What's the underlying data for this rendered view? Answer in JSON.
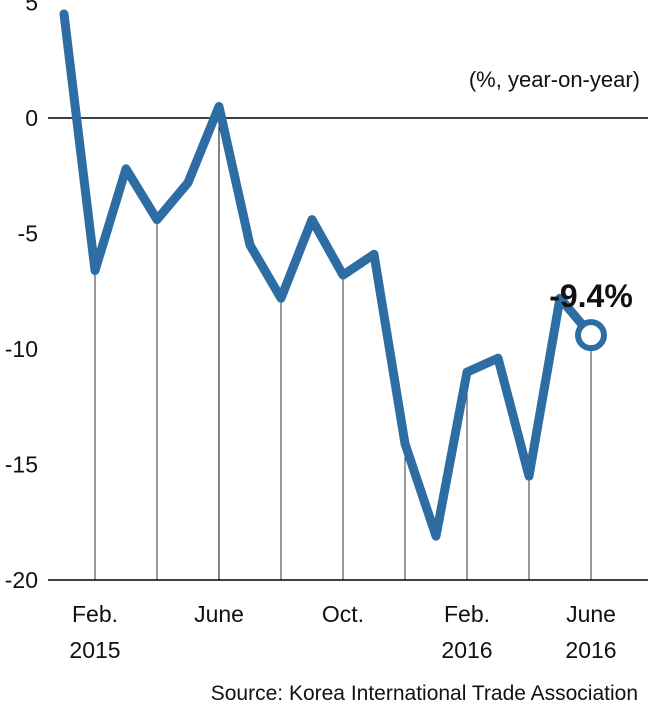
{
  "chart_data": {
    "type": "line",
    "unit_note": "(%, year-on-year)",
    "source": "Source: Korea International Trade Association",
    "ylim": [
      -20,
      5
    ],
    "yticks": [
      5,
      0,
      -5,
      -10,
      -15,
      -20
    ],
    "y_tick_labels": [
      "5",
      "0",
      "-5",
      "-10",
      "-15",
      "-20"
    ],
    "x": [
      "2015-01",
      "2015-02",
      "2015-03",
      "2015-04",
      "2015-05",
      "2015-06",
      "2015-07",
      "2015-08",
      "2015-09",
      "2015-10",
      "2015-11",
      "2015-12",
      "2016-01",
      "2016-02",
      "2016-03",
      "2016-04",
      "2016-05",
      "2016-06"
    ],
    "values": [
      4.5,
      -6.6,
      -2.2,
      -4.4,
      -2.8,
      0.5,
      -5.5,
      -7.8,
      -4.4,
      -6.8,
      -5.9,
      -14.1,
      -18.1,
      -11.0,
      -10.4,
      -15.5,
      -7.8,
      -9.4
    ],
    "x_tick_labels": [
      {
        "x": "2015-02",
        "lines": [
          "Feb.",
          "2015"
        ]
      },
      {
        "x": "2015-06",
        "lines": [
          "June"
        ]
      },
      {
        "x": "2015-10",
        "lines": [
          "Oct."
        ]
      },
      {
        "x": "2016-02",
        "lines": [
          "Feb.",
          "2016"
        ]
      },
      {
        "x": "2016-06",
        "lines": [
          "June",
          "2016"
        ]
      }
    ],
    "annotation": {
      "x": "2016-06",
      "label": "-9.4%"
    },
    "line_color": "#2e6da4",
    "grid": false
  }
}
